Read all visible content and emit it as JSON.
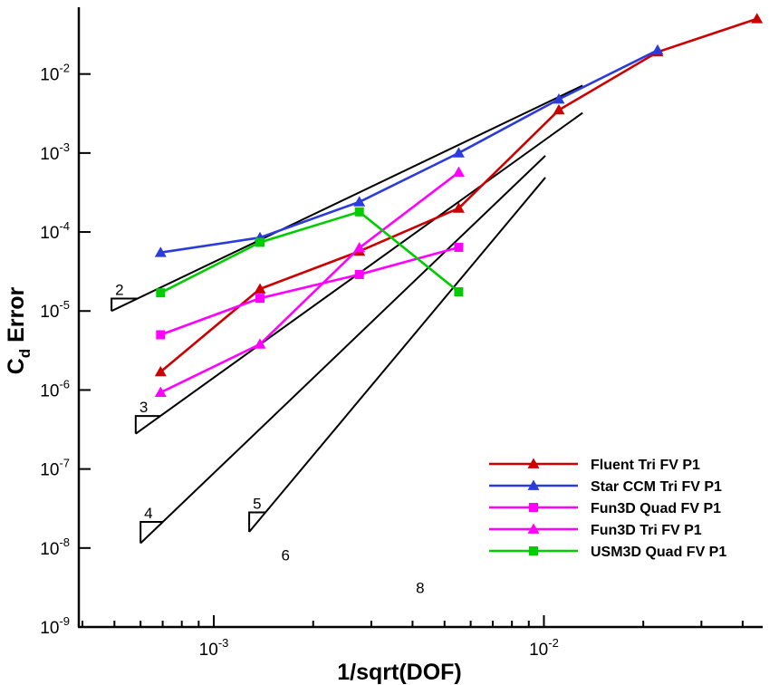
{
  "chart_data": {
    "type": "line",
    "xscale": "log",
    "yscale": "log",
    "xlim": [
      0.00039,
      0.046
    ],
    "ylim": [
      1e-09,
      0.07
    ],
    "xlabel": "1/sqrt(DOF)",
    "ylabel": "Cd Error",
    "ylabel_base": "C",
    "ylabel_sub": "d",
    "ylabel_rest": " Error",
    "grid": false,
    "legend_position": "bottom-right",
    "x_ticks": [
      {
        "value": 0.001,
        "base": "10",
        "exp": "-3"
      },
      {
        "value": 0.01,
        "base": "10",
        "exp": "-2"
      }
    ],
    "y_ticks": [
      {
        "value": 1e-09,
        "base": "10",
        "exp": "-9"
      },
      {
        "value": 1e-08,
        "base": "10",
        "exp": "-8"
      },
      {
        "value": 1e-07,
        "base": "10",
        "exp": "-7"
      },
      {
        "value": 1e-06,
        "base": "10",
        "exp": "-6"
      },
      {
        "value": 1e-05,
        "base": "10",
        "exp": "-5"
      },
      {
        "value": 0.0001,
        "base": "10",
        "exp": "-4"
      },
      {
        "value": 0.001,
        "base": "10",
        "exp": "-3"
      },
      {
        "value": 0.01,
        "base": "10",
        "exp": "-2"
      }
    ],
    "series": [
      {
        "name": "Fluent Tri FV P1",
        "color": "#cc0000",
        "marker": "triangle",
        "x": [
          0.00069,
          0.00138,
          0.00276,
          0.00552,
          0.0111,
          0.0221,
          0.0442
        ],
        "y": [
          1.7e-06,
          1.9e-05,
          5.7e-05,
          0.0002,
          0.0035,
          0.019,
          0.05
        ]
      },
      {
        "name": "Star CCM Tri FV P1",
        "color": "#2b3bdc",
        "marker": "triangle",
        "x": [
          0.00069,
          0.00138,
          0.00276,
          0.00552,
          0.0111,
          0.0221
        ],
        "y": [
          5.5e-05,
          8.5e-05,
          0.00024,
          0.001,
          0.0048,
          0.02
        ]
      },
      {
        "name": "Fun3D Quad FV P1",
        "color": "#ff00ff",
        "marker": "square",
        "x": [
          0.00069,
          0.00138,
          0.00276,
          0.00552
        ],
        "y": [
          5e-06,
          1.45e-05,
          2.9e-05,
          6.4e-05
        ]
      },
      {
        "name": "Fun3D Tri FV P1",
        "color": "#ff00ff",
        "marker": "triangle",
        "x": [
          0.00069,
          0.00138,
          0.00276,
          0.00552
        ],
        "y": [
          9.3e-07,
          3.8e-06,
          6.3e-05,
          0.00057
        ]
      },
      {
        "name": "USM3D Quad FV P1",
        "color": "#00cc00",
        "marker": "square",
        "x": [
          0.00069,
          0.00138,
          0.00276,
          0.00552
        ],
        "y": [
          1.7e-05,
          7.4e-05,
          0.00018,
          1.75e-05
        ]
      }
    ],
    "reference_slopes": [
      {
        "label": "2",
        "slope": 2,
        "x": [
          0.00049,
          0.0131
        ],
        "y0": 1e-05
      },
      {
        "label": "3",
        "slope": 3,
        "x": [
          0.00058,
          0.0131
        ],
        "y0": 2.8e-07
      },
      {
        "label": "4",
        "slope": 4,
        "x": [
          0.0006,
          0.0101
        ],
        "y0": 1.15e-08
      },
      {
        "label": "5",
        "slope": 5,
        "x": [
          0.00128,
          0.0101
        ],
        "y0": 1.6e-08
      }
    ],
    "annotations": [
      {
        "text": "6",
        "x": 0.00165,
        "y": 7e-09
      },
      {
        "text": "8",
        "x": 0.00422,
        "y": 2.7e-09
      }
    ]
  }
}
